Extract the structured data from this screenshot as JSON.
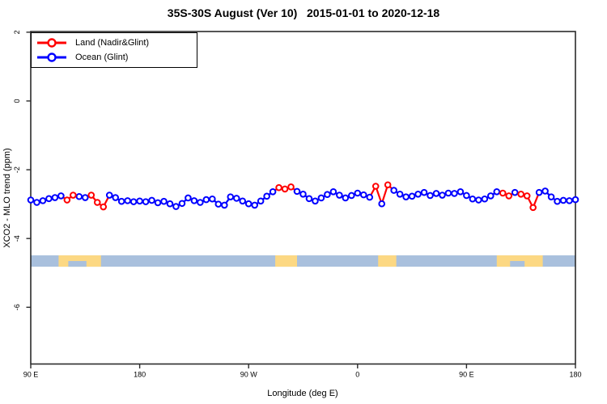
{
  "legend": {
    "items": [
      {
        "label": "Land (Nadir&Glint)",
        "color": "#ff0000",
        "series": "land"
      },
      {
        "label": "Ocean (Glint)",
        "color": "#0000ff",
        "series": "ocean"
      }
    ]
  },
  "chart_data": {
    "type": "line",
    "title": "35S-30S August (Ver 10)   2015-01-01 to 2020-12-18",
    "xlabel": "Longitude (deg E)",
    "ylabel": "XCO2 - MLO trend (ppm)",
    "xlim": [
      90,
      540
    ],
    "ylim": [
      -7.65,
      2.02
    ],
    "grid": false,
    "legend_position": "top-left",
    "marker": "open-circle",
    "x_ticks": [
      {
        "value": 90,
        "label": "90 E"
      },
      {
        "value": 180,
        "label": "180"
      },
      {
        "value": 270,
        "label": "90 W"
      },
      {
        "value": 360,
        "label": "0"
      },
      {
        "value": 450,
        "label": "90 E"
      },
      {
        "value": 540,
        "label": "180"
      }
    ],
    "y_ticks": [
      {
        "value": 2,
        "label": "2"
      },
      {
        "value": 0,
        "label": "0"
      },
      {
        "value": -2,
        "label": "-2"
      },
      {
        "value": -4,
        "label": "-4"
      },
      {
        "value": -6,
        "label": "-6"
      }
    ],
    "series": [
      {
        "key": "land",
        "name": "Land (Nadir&Glint)",
        "color": "#ff0000"
      },
      {
        "key": "ocean",
        "name": "Ocean (Glint)",
        "color": "#0000ff"
      }
    ],
    "points_columns": [
      "longitude_deg_e",
      "xco2_minus_mlo_trend_ppm",
      "series"
    ],
    "points": [
      [
        90,
        -2.88,
        "ocean"
      ],
      [
        95,
        -2.95,
        "ocean"
      ],
      [
        100,
        -2.9,
        "ocean"
      ],
      [
        105,
        -2.84,
        "ocean"
      ],
      [
        110,
        -2.81,
        "ocean"
      ],
      [
        115,
        -2.76,
        "ocean"
      ],
      [
        120,
        -2.88,
        "land"
      ],
      [
        125,
        -2.74,
        "land"
      ],
      [
        130,
        -2.78,
        "ocean"
      ],
      [
        135,
        -2.81,
        "ocean"
      ],
      [
        140,
        -2.74,
        "land"
      ],
      [
        145,
        -2.95,
        "land"
      ],
      [
        150,
        -3.08,
        "land"
      ],
      [
        155,
        -2.74,
        "ocean"
      ],
      [
        160,
        -2.81,
        "ocean"
      ],
      [
        165,
        -2.92,
        "ocean"
      ],
      [
        170,
        -2.9,
        "ocean"
      ],
      [
        175,
        -2.93,
        "ocean"
      ],
      [
        180,
        -2.91,
        "ocean"
      ],
      [
        185,
        -2.93,
        "ocean"
      ],
      [
        190,
        -2.89,
        "ocean"
      ],
      [
        195,
        -2.96,
        "ocean"
      ],
      [
        200,
        -2.92,
        "ocean"
      ],
      [
        205,
        -2.99,
        "ocean"
      ],
      [
        210,
        -3.07,
        "ocean"
      ],
      [
        215,
        -2.98,
        "ocean"
      ],
      [
        220,
        -2.82,
        "ocean"
      ],
      [
        225,
        -2.9,
        "ocean"
      ],
      [
        230,
        -2.95,
        "ocean"
      ],
      [
        235,
        -2.87,
        "ocean"
      ],
      [
        240,
        -2.85,
        "ocean"
      ],
      [
        245,
        -3.0,
        "ocean"
      ],
      [
        250,
        -3.03,
        "ocean"
      ],
      [
        255,
        -2.79,
        "ocean"
      ],
      [
        260,
        -2.83,
        "ocean"
      ],
      [
        265,
        -2.91,
        "ocean"
      ],
      [
        270,
        -2.99,
        "ocean"
      ],
      [
        275,
        -3.03,
        "ocean"
      ],
      [
        280,
        -2.91,
        "ocean"
      ],
      [
        285,
        -2.77,
        "ocean"
      ],
      [
        290,
        -2.64,
        "ocean"
      ],
      [
        295,
        -2.52,
        "land"
      ],
      [
        300,
        -2.56,
        "land"
      ],
      [
        305,
        -2.5,
        "land"
      ],
      [
        310,
        -2.63,
        "ocean"
      ],
      [
        315,
        -2.71,
        "ocean"
      ],
      [
        320,
        -2.84,
        "ocean"
      ],
      [
        325,
        -2.91,
        "ocean"
      ],
      [
        330,
        -2.82,
        "ocean"
      ],
      [
        335,
        -2.72,
        "ocean"
      ],
      [
        340,
        -2.64,
        "ocean"
      ],
      [
        345,
        -2.74,
        "ocean"
      ],
      [
        350,
        -2.82,
        "ocean"
      ],
      [
        355,
        -2.75,
        "ocean"
      ],
      [
        360,
        -2.68,
        "ocean"
      ],
      [
        365,
        -2.73,
        "ocean"
      ],
      [
        370,
        -2.8,
        "ocean"
      ],
      [
        375,
        -2.48,
        "land"
      ],
      [
        380,
        -2.99,
        "ocean"
      ],
      [
        385,
        -2.44,
        "land"
      ],
      [
        390,
        -2.6,
        "ocean"
      ],
      [
        395,
        -2.71,
        "ocean"
      ],
      [
        400,
        -2.79,
        "ocean"
      ],
      [
        405,
        -2.77,
        "ocean"
      ],
      [
        410,
        -2.71,
        "ocean"
      ],
      [
        415,
        -2.66,
        "ocean"
      ],
      [
        420,
        -2.75,
        "ocean"
      ],
      [
        425,
        -2.69,
        "ocean"
      ],
      [
        430,
        -2.74,
        "ocean"
      ],
      [
        435,
        -2.68,
        "ocean"
      ],
      [
        440,
        -2.69,
        "ocean"
      ],
      [
        445,
        -2.64,
        "ocean"
      ],
      [
        450,
        -2.75,
        "ocean"
      ],
      [
        455,
        -2.85,
        "ocean"
      ],
      [
        460,
        -2.88,
        "ocean"
      ],
      [
        465,
        -2.85,
        "ocean"
      ],
      [
        470,
        -2.76,
        "ocean"
      ],
      [
        475,
        -2.64,
        "ocean"
      ],
      [
        480,
        -2.68,
        "land"
      ],
      [
        485,
        -2.76,
        "land"
      ],
      [
        490,
        -2.66,
        "ocean"
      ],
      [
        495,
        -2.71,
        "land"
      ],
      [
        500,
        -2.76,
        "land"
      ],
      [
        505,
        -3.1,
        "land"
      ],
      [
        510,
        -2.66,
        "ocean"
      ],
      [
        515,
        -2.62,
        "ocean"
      ],
      [
        520,
        -2.79,
        "ocean"
      ],
      [
        525,
        -2.92,
        "ocean"
      ],
      [
        530,
        -2.89,
        "ocean"
      ],
      [
        535,
        -2.9,
        "ocean"
      ],
      [
        540,
        -2.87,
        "ocean"
      ]
    ],
    "map_strip": {
      "description": "coastline strip: ocean vs land along latitude band",
      "top_value": -4.49,
      "bottom_value": -4.82,
      "ocean_color": "#a9c0dd",
      "land_color": "#fcd883",
      "land_segments": [
        {
          "from": 113,
          "to": 148
        },
        {
          "from": 292,
          "to": 310
        },
        {
          "from": 377,
          "to": 392
        },
        {
          "from": 475,
          "to": 513
        }
      ],
      "ocean_notches": [
        {
          "from": 121,
          "to": 136
        },
        {
          "from": 486,
          "to": 498
        }
      ]
    }
  }
}
